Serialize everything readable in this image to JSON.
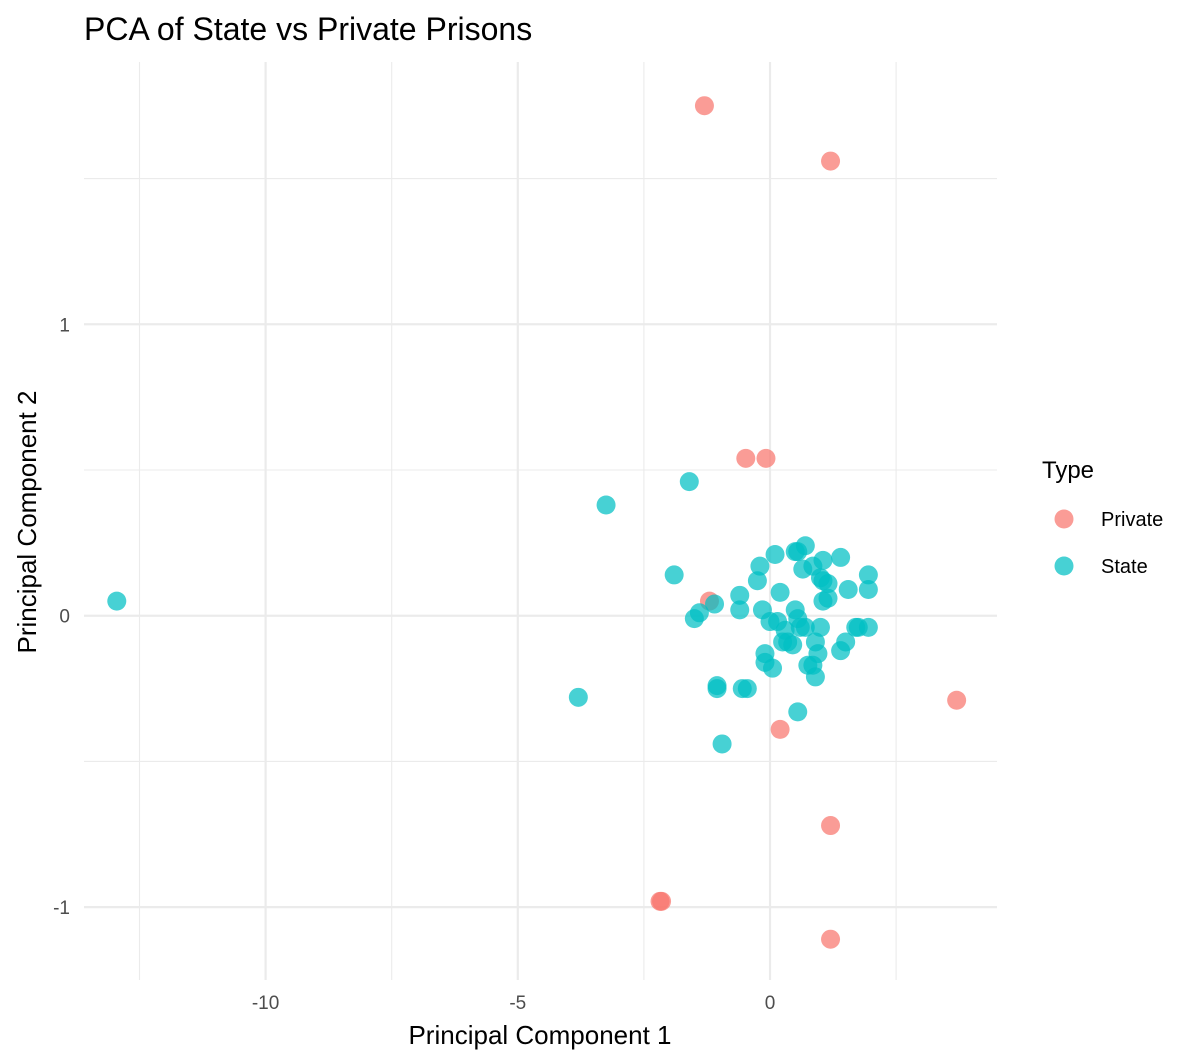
{
  "chart_data": {
    "type": "scatter",
    "title": "PCA of State vs Private Prisons",
    "xlabel": "Principal Component 1",
    "ylabel": "Principal Component 2",
    "xlim": [
      -13.6,
      4.5
    ],
    "ylim": [
      -1.25,
      1.9
    ],
    "x_ticks": [
      -10,
      -5,
      0
    ],
    "x_tick_labels": [
      "-10",
      "-5",
      "0"
    ],
    "y_ticks": [
      -1,
      0,
      1
    ],
    "y_tick_labels": [
      "-1",
      "0",
      "1"
    ],
    "grid": true,
    "legend": {
      "title": "Type",
      "position": "right"
    },
    "series": [
      {
        "name": "Private",
        "color": "#F8766D",
        "points": [
          {
            "x": -1.3,
            "y": 1.75
          },
          {
            "x": 1.2,
            "y": 1.56
          },
          {
            "x": -0.48,
            "y": 0.54
          },
          {
            "x": -0.08,
            "y": 0.54
          },
          {
            "x": -1.2,
            "y": 0.05
          },
          {
            "x": 3.7,
            "y": -0.29
          },
          {
            "x": 0.2,
            "y": -0.39
          },
          {
            "x": 1.2,
            "y": -0.72
          },
          {
            "x": -2.15,
            "y": -0.98
          },
          {
            "x": -2.18,
            "y": -0.98
          },
          {
            "x": 1.2,
            "y": -1.11
          }
        ]
      },
      {
        "name": "State",
        "color": "#00BFC4",
        "points": [
          {
            "x": -12.95,
            "y": 0.05
          },
          {
            "x": -3.25,
            "y": 0.38
          },
          {
            "x": -1.6,
            "y": 0.46
          },
          {
            "x": -3.8,
            "y": -0.28
          },
          {
            "x": -1.9,
            "y": 0.14
          },
          {
            "x": -1.1,
            "y": 0.04
          },
          {
            "x": -1.4,
            "y": 0.01
          },
          {
            "x": -1.5,
            "y": -0.01
          },
          {
            "x": -0.6,
            "y": 0.07
          },
          {
            "x": -0.6,
            "y": 0.02
          },
          {
            "x": -0.25,
            "y": 0.12
          },
          {
            "x": -0.2,
            "y": 0.17
          },
          {
            "x": -0.15,
            "y": 0.02
          },
          {
            "x": 0.1,
            "y": 0.21
          },
          {
            "x": 0.2,
            "y": 0.08
          },
          {
            "x": 0.5,
            "y": 0.22
          },
          {
            "x": 0.55,
            "y": 0.22
          },
          {
            "x": 0.7,
            "y": 0.24
          },
          {
            "x": 0.65,
            "y": 0.16
          },
          {
            "x": 0.85,
            "y": 0.17
          },
          {
            "x": 1.05,
            "y": 0.19
          },
          {
            "x": 1.4,
            "y": 0.2
          },
          {
            "x": 1.0,
            "y": 0.13
          },
          {
            "x": 1.05,
            "y": 0.12
          },
          {
            "x": 1.15,
            "y": 0.11
          },
          {
            "x": 1.55,
            "y": 0.09
          },
          {
            "x": 1.95,
            "y": 0.14
          },
          {
            "x": 1.95,
            "y": 0.09
          },
          {
            "x": 1.15,
            "y": 0.06
          },
          {
            "x": 1.05,
            "y": 0.05
          },
          {
            "x": 0.0,
            "y": -0.02
          },
          {
            "x": 0.15,
            "y": -0.02
          },
          {
            "x": 0.3,
            "y": -0.05
          },
          {
            "x": 0.5,
            "y": 0.02
          },
          {
            "x": 0.55,
            "y": -0.01
          },
          {
            "x": 0.6,
            "y": -0.04
          },
          {
            "x": 0.7,
            "y": -0.04
          },
          {
            "x": 1.0,
            "y": -0.04
          },
          {
            "x": 0.25,
            "y": -0.09
          },
          {
            "x": 0.35,
            "y": -0.09
          },
          {
            "x": 0.45,
            "y": -0.1
          },
          {
            "x": 0.9,
            "y": -0.09
          },
          {
            "x": 0.95,
            "y": -0.13
          },
          {
            "x": 1.5,
            "y": -0.09
          },
          {
            "x": 1.4,
            "y": -0.12
          },
          {
            "x": 1.7,
            "y": -0.04
          },
          {
            "x": 1.75,
            "y": -0.04
          },
          {
            "x": 1.95,
            "y": -0.04
          },
          {
            "x": -0.1,
            "y": -0.13
          },
          {
            "x": -0.1,
            "y": -0.16
          },
          {
            "x": 0.05,
            "y": -0.18
          },
          {
            "x": 0.75,
            "y": -0.17
          },
          {
            "x": 0.85,
            "y": -0.17
          },
          {
            "x": 0.9,
            "y": -0.21
          },
          {
            "x": -1.05,
            "y": -0.24
          },
          {
            "x": -1.05,
            "y": -0.25
          },
          {
            "x": -0.55,
            "y": -0.25
          },
          {
            "x": -0.45,
            "y": -0.25
          },
          {
            "x": 0.55,
            "y": -0.33
          },
          {
            "x": -0.95,
            "y": -0.44
          }
        ]
      }
    ]
  }
}
